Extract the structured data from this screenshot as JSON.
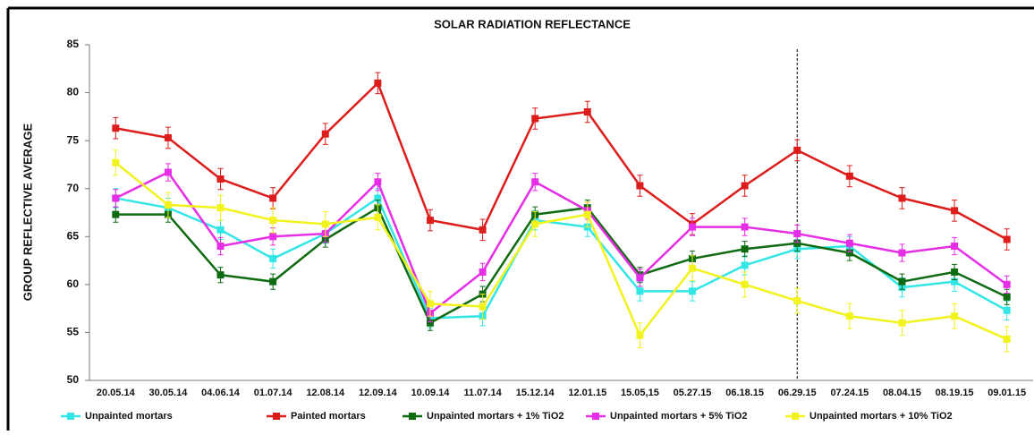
{
  "chart_data": {
    "type": "line",
    "title": "SOLAR RADIATION REFLECTANCE",
    "ylabel": "GROUP REFLECTIVE AVERAGE",
    "categories": [
      "20.05.14",
      "30.05.14",
      "04.06.14",
      "01.07.14",
      "12.08.14",
      "12.09.14",
      "10.09.14",
      "11.07.14",
      "15.12.14",
      "12.01.15",
      "15.05,15",
      "05.27.15",
      "06.18.15",
      "06.29.15",
      "07.24.15",
      "08.04.15",
      "08.19.15",
      "09.01.15"
    ],
    "series": [
      {
        "name": "Unpainted mortars",
        "color": "#33e6e6",
        "error": 1,
        "values": [
          69,
          68,
          65.7,
          62.7,
          65.3,
          69,
          56.5,
          56.7,
          66.7,
          66,
          59.3,
          59.3,
          62,
          63.7,
          64,
          59.7,
          60.3,
          57.3
        ]
      },
      {
        "name": "Painted mortars",
        "color": "#dd1c1c",
        "error": 1.1,
        "values": [
          76.3,
          75.3,
          71,
          69,
          75.7,
          81,
          66.7,
          65.7,
          77.3,
          78,
          70.3,
          66.3,
          70.3,
          74,
          71.3,
          69,
          67.7,
          64.7
        ]
      },
      {
        "name": "Unpainted mortars + 1% TiO2",
        "color": "#0f6b12",
        "error": 0.8,
        "values": [
          67.3,
          67.3,
          61,
          60.3,
          64.7,
          68,
          56,
          59,
          67.3,
          68,
          61,
          62.7,
          63.7,
          64.3,
          63.3,
          60.3,
          61.3,
          58.7
        ]
      },
      {
        "name": "Unpainted mortars + 5% TiO2",
        "color": "#e62ee6",
        "error": 0.9,
        "values": [
          69,
          71.7,
          64,
          65,
          65.3,
          70.7,
          57,
          61.3,
          70.7,
          67.7,
          60.7,
          66,
          66,
          65.3,
          64.3,
          63.3,
          64,
          60
        ]
      },
      {
        "name": "Unpainted mortars + 10% TiO2",
        "color": "#f2f21c",
        "error": 1.3,
        "values": [
          72.7,
          68.3,
          68,
          66.7,
          66.3,
          67,
          58,
          57.7,
          66.3,
          67.3,
          54.7,
          61.7,
          60,
          58.3,
          56.7,
          56,
          56.7,
          54.3
        ]
      }
    ],
    "ylim": [
      50,
      85
    ],
    "yticks": [
      50,
      55,
      60,
      65,
      70,
      75,
      80,
      85
    ],
    "grid": false,
    "vline": "06.29.15",
    "legend": "bottom"
  }
}
